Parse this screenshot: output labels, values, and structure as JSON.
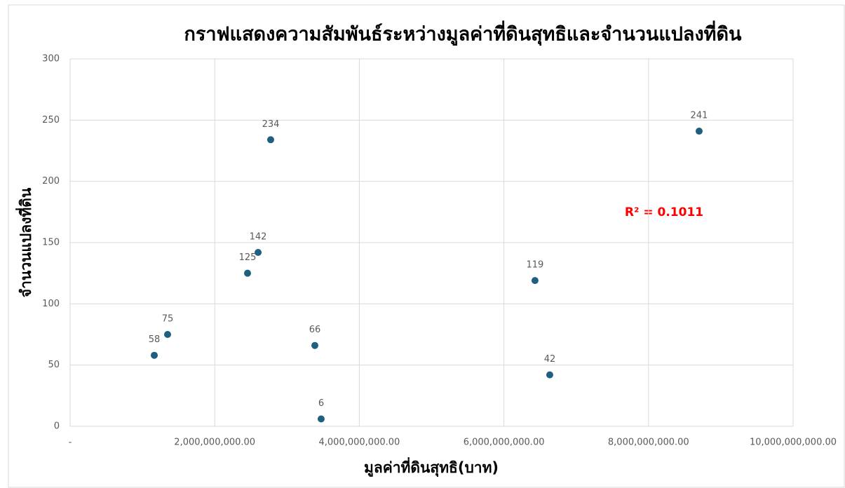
{
  "chart_data": {
    "type": "scatter",
    "title": "กราฟแสดงความสัมพันธ์ระหว่างมูลค่าที่ดินสุทธิและจำนวนแปลงที่ดิน",
    "x_label": "มูลค่าที่ดินสุทธิ(บาท)",
    "y_label": "จำนวนแปลงที่ดิน",
    "annotation": "R² = 0.1011",
    "series": [
      {
        "color": "#1f5f80",
        "x": [
          1164000000,
          1348000000,
          2454000000,
          2600000000,
          2774000000,
          3385000000,
          3472000000,
          6430000000,
          6634000000,
          8700000000
        ],
        "values": [
          58,
          75,
          125,
          142,
          234,
          66,
          6,
          119,
          42,
          241
        ]
      }
    ],
    "xlim": [
      0,
      10000000000
    ],
    "xticks": [
      {
        "value": 0,
        "label": "-"
      },
      {
        "value": 2000000000,
        "label": "2,000,000,000.00"
      },
      {
        "value": 4000000000,
        "label": "4,000,000,000.00"
      },
      {
        "value": 6000000000,
        "label": "6,000,000,000.00"
      },
      {
        "value": 8000000000,
        "label": "8,000,000,000.00"
      },
      {
        "value": 10000000000,
        "label": "10,000,000,000.00"
      }
    ],
    "ylim": [
      0,
      300
    ],
    "yticks": [
      0,
      50,
      100,
      150,
      200,
      250,
      300
    ],
    "grid": true
  }
}
